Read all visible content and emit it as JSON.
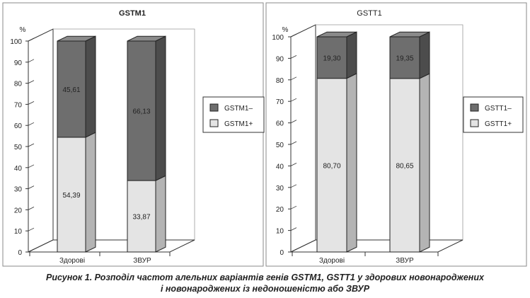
{
  "chart_data": [
    {
      "type": "bar",
      "stacked": true,
      "three_d": true,
      "title": "GSTM1",
      "title_bold": true,
      "ylabel": "%",
      "ylim": [
        0,
        100
      ],
      "yticks": [
        "0",
        "10",
        "20",
        "30",
        "40",
        "50",
        "60",
        "70",
        "80",
        "90",
        "100"
      ],
      "categories": [
        "Здорові",
        "ЗВУР"
      ],
      "series": [
        {
          "name": "GSTM1+",
          "values": [
            54.39,
            33.87
          ],
          "labels": [
            "54,39",
            "33,87"
          ],
          "color": "#e4e4e4",
          "side": "#b4b4b4",
          "top": "#f2f2f2"
        },
        {
          "name": "GSTM1–",
          "values": [
            45.61,
            66.13
          ],
          "labels": [
            "45,61",
            "66,13"
          ],
          "color": "#6e6e6e",
          "side": "#4c4c4c",
          "top": "#8a8a8a"
        }
      ],
      "legend": [
        "GSTM1–",
        "GSTM1+"
      ],
      "legend_position": "right",
      "grid": false
    },
    {
      "type": "bar",
      "stacked": true,
      "three_d": true,
      "title": "GSTT1",
      "title_bold": false,
      "ylabel": "%",
      "ylim": [
        0,
        100
      ],
      "yticks": [
        "0",
        "10",
        "20",
        "30",
        "40",
        "50",
        "60",
        "70",
        "80",
        "90",
        "100"
      ],
      "categories": [
        "Здорові",
        "ЗВУР"
      ],
      "series": [
        {
          "name": "GSTT1+",
          "values": [
            80.7,
            80.65
          ],
          "labels": [
            "80,70",
            "80,65"
          ],
          "color": "#e4e4e4",
          "side": "#b4b4b4",
          "top": "#f2f2f2"
        },
        {
          "name": "GSTT1–",
          "values": [
            19.3,
            19.35
          ],
          "labels": [
            "19,30",
            "19,35"
          ],
          "color": "#6e6e6e",
          "side": "#4c4c4c",
          "top": "#8a8a8a"
        }
      ],
      "legend": [
        "GSTT1–",
        "GSTT1+"
      ],
      "legend_position": "right",
      "grid": false
    }
  ],
  "caption": {
    "line1": "Рисунок 1. Розподіл частот алельних варіантів генів GSTM1, GSTT1 у здорових новонароджених",
    "line2": "і новонароджених із недоношеністю або ЗВУР"
  }
}
